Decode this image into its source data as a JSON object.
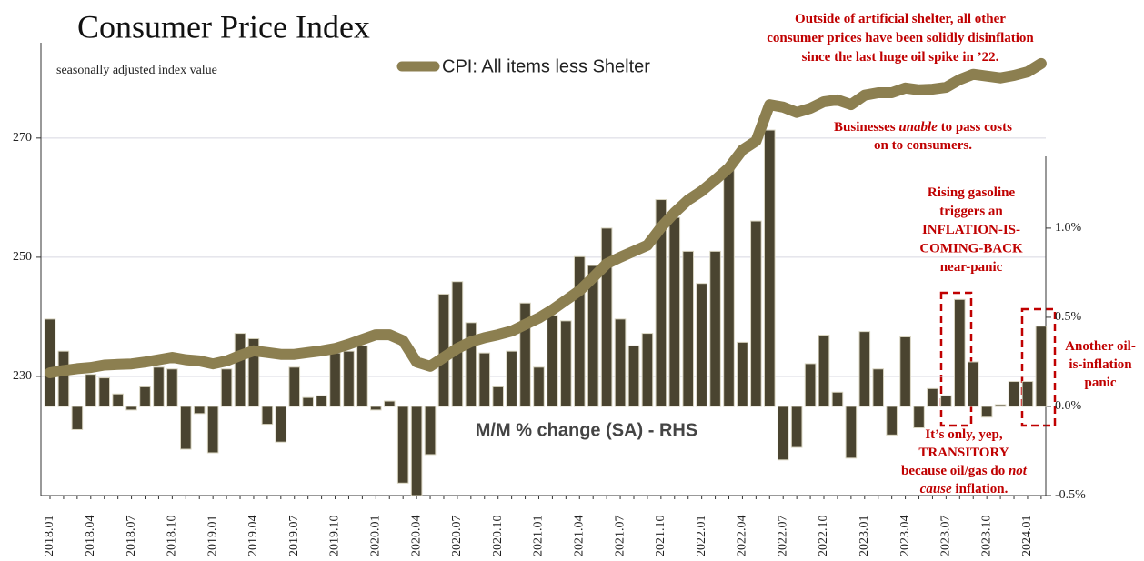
{
  "chart_data": {
    "type": "combo",
    "title": "Consumer Price Index",
    "y_axis_label": "seasonally adjusted index value",
    "categories": [
      "2018.01",
      null,
      null,
      "2018.04",
      null,
      null,
      "2018.07",
      null,
      null,
      "2018.10",
      null,
      null,
      "2019.01",
      null,
      null,
      "2019.04",
      null,
      null,
      "2019.07",
      null,
      null,
      "2019.10",
      null,
      null,
      "2020.01",
      null,
      null,
      "2020.04",
      null,
      null,
      "2020.07",
      null,
      null,
      "2020.10",
      null,
      null,
      "2021.01",
      null,
      null,
      "2021.04",
      null,
      null,
      "2021.07",
      null,
      null,
      "2021.10",
      null,
      null,
      "2022.01",
      null,
      null,
      "2022.04",
      null,
      null,
      "2022.07",
      null,
      null,
      "2022.10",
      null,
      null,
      "2023.01",
      null,
      null,
      "2023.04",
      null,
      null,
      "2023.07",
      null,
      null,
      "2023.10",
      null,
      null,
      "2024.01",
      null
    ],
    "series": [
      {
        "name": "M/M % change (SA) - RHS",
        "type": "bar",
        "axis": "y2",
        "color": "#4a4430",
        "values": [
          0.49,
          0.31,
          -0.13,
          0.18,
          0.16,
          0.07,
          -0.02,
          0.11,
          0.22,
          0.21,
          -0.24,
          -0.04,
          -0.26,
          0.21,
          0.41,
          0.38,
          -0.1,
          -0.2,
          0.22,
          0.05,
          0.06,
          0.3,
          0.31,
          0.34,
          -0.02,
          0.03,
          -0.43,
          -0.5,
          -0.27,
          0.63,
          0.7,
          0.47,
          0.3,
          0.11,
          0.31,
          0.58,
          0.22,
          0.51,
          0.48,
          0.84,
          0.79,
          1.0,
          0.49,
          0.34,
          0.41,
          1.16,
          1.06,
          0.87,
          0.69,
          0.87,
          1.34,
          0.36,
          1.04,
          1.55,
          -0.3,
          -0.23,
          0.24,
          0.4,
          0.08,
          -0.29,
          0.42,
          0.21,
          -0.16,
          0.39,
          -0.12,
          0.1,
          0.06,
          0.6,
          0.25,
          -0.06,
          0.01,
          0.14,
          0.14,
          0.45
        ]
      },
      {
        "name": "CPI: All items less Shelter",
        "type": "line",
        "color": "#8c7f50",
        "values": [
          230.6,
          231.0,
          231.3,
          231.5,
          231.9,
          232.0,
          232.1,
          232.4,
          232.8,
          233.2,
          232.8,
          232.6,
          232.1,
          232.6,
          233.5,
          234.3,
          234.0,
          233.7,
          233.7,
          234.0,
          234.3,
          234.7,
          235.4,
          236.2,
          237.0,
          237.0,
          236.0,
          232.4,
          231.7,
          233.2,
          234.7,
          235.8,
          236.5,
          237.0,
          237.6,
          238.7,
          239.8,
          241.2,
          242.8,
          244.4,
          246.6,
          248.9,
          250.0,
          251.0,
          252.0,
          255.0,
          257.5,
          259.6,
          261.1,
          263.0,
          265.0,
          268.0,
          269.5,
          275.6,
          275.2,
          274.3,
          275.0,
          276.1,
          276.4,
          275.6,
          277.2,
          277.6,
          277.6,
          278.4,
          278.1,
          278.2,
          278.5,
          279.8,
          280.7,
          280.4,
          280.1,
          280.5,
          281.1,
          282.5
        ]
      }
    ],
    "ylim": [
      210,
      286
    ],
    "yticks": [
      230,
      250,
      270
    ],
    "y2lim": [
      -0.5,
      2.04
    ],
    "y2ticks": [
      {
        "value": 1,
        "label": "1.0%"
      },
      {
        "value": 0.5,
        "label": "0.5%"
      },
      {
        "value": 0,
        "label": "0.0%"
      },
      {
        "value": -0.5,
        "label": "-0.5%"
      }
    ],
    "grid": true,
    "annotations": [
      {
        "lines": [
          [
            "Outside of artificial shelter, all other"
          ],
          [
            "consumer prices have been solidly disinflation"
          ],
          [
            "since the last huge oil spike in ’22."
          ]
        ]
      },
      {
        "lines": [
          [
            "Businesses ",
            {
              "italic": "unable"
            },
            " to pass costs"
          ],
          [
            "on to consumers."
          ]
        ]
      },
      {
        "lines": [
          [
            "Rising gasoline"
          ],
          [
            "triggers an"
          ],
          [
            "INFLATION-IS-"
          ],
          [
            "COMING-BACK"
          ],
          [
            "near-panic"
          ]
        ]
      },
      {
        "lines": [
          [
            "It’s only, yep,"
          ],
          [
            "TRANSITORY"
          ],
          [
            "because oil/gas do ",
            {
              "italic": "not"
            }
          ],
          [
            {
              "italic": "cause"
            },
            " inflation."
          ]
        ]
      },
      {
        "lines": [
          [
            "Another oil-"
          ],
          [
            "is-inflation"
          ],
          [
            "panic"
          ]
        ]
      }
    ]
  }
}
